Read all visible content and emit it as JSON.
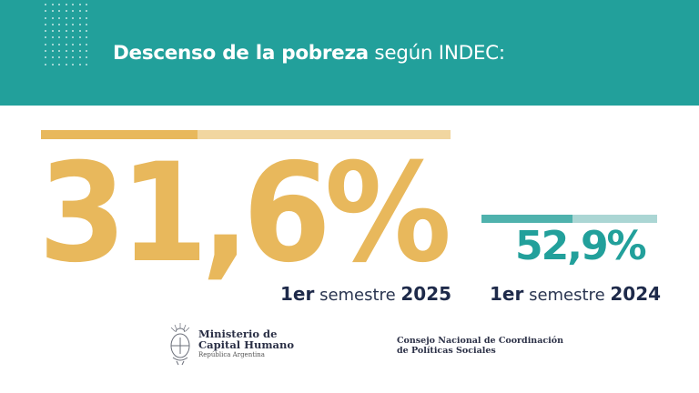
{
  "header": {
    "title_bold": "Descenso de la pobreza",
    "title_regular": " según INDEC:",
    "background_color": "#22a09b",
    "decoration": "dot-grid"
  },
  "current": {
    "value": "31,6%",
    "period_prefix": "1er",
    "period_word": " semestre ",
    "period_year": "2025",
    "color": "#e8b85c",
    "bar_fill_color": "#e8b85c",
    "bar_rest_color": "#f1d6a0"
  },
  "previous": {
    "value": "52,9%",
    "period_prefix": "1er",
    "period_word": " semestre ",
    "period_year": "2024",
    "color": "#22a09b",
    "bar_fill_color": "#4fb2ad",
    "bar_rest_color": "#abd6d4"
  },
  "footer": {
    "ministry": {
      "icon": "coat-of-arms-icon",
      "line1": "Ministerio de",
      "line2": "Capital Humano",
      "line3": "República Argentina"
    },
    "council": {
      "line1": "Consejo Nacional de Coordinación",
      "line2": "de Políticas Sociales"
    }
  }
}
